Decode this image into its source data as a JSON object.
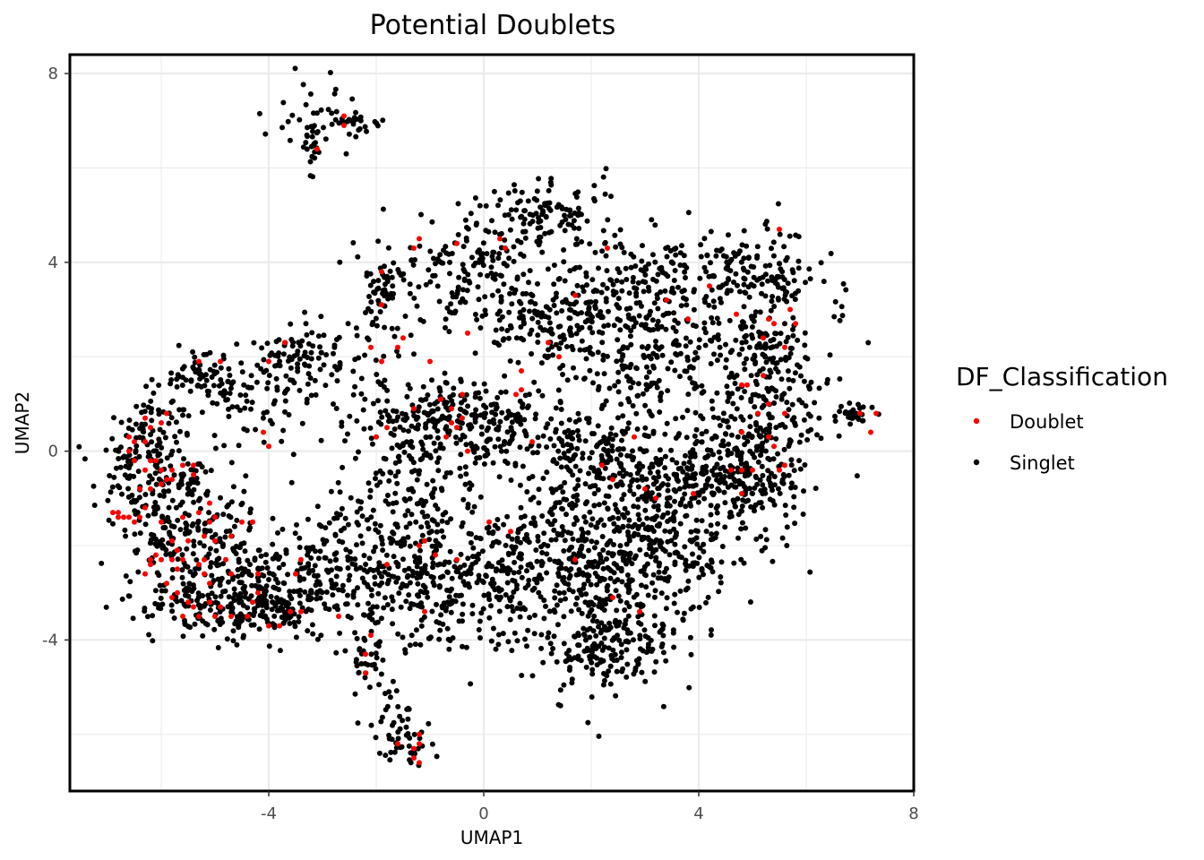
{
  "chart_data": {
    "type": "scatter",
    "title": "Potential Doublets",
    "xlabel": "UMAP1",
    "ylabel": "UMAP2",
    "xlim": [
      -7.7,
      8
    ],
    "ylim": [
      -7.2,
      8.4
    ],
    "xticks": [
      -4,
      0,
      4,
      8
    ],
    "xtick_labels": [
      "-4",
      "0",
      "4",
      "8"
    ],
    "yticks": [
      -4,
      0,
      4,
      8
    ],
    "ytick_labels": [
      "-4",
      "0",
      "4",
      "8"
    ],
    "grid": true,
    "legend": {
      "title": "DF_Classification",
      "placement": "right",
      "entries": [
        "Doublet",
        "Singlet"
      ]
    },
    "series": [
      {
        "name": "Doublet",
        "color": "#ff0000",
        "points": [
          [
            -3.1,
            6.4
          ],
          [
            -2.6,
            7.1
          ],
          [
            -2.6,
            6.9
          ],
          [
            -1.9,
            3.8
          ],
          [
            -1.2,
            4.5
          ],
          [
            -1.3,
            4.3
          ],
          [
            -1.9,
            3.1
          ],
          [
            -2.1,
            2.2
          ],
          [
            -1.5,
            2.4
          ],
          [
            -1.6,
            2.2
          ],
          [
            -1.9,
            1.9
          ],
          [
            -1.0,
            1.9
          ],
          [
            -0.5,
            4.4
          ],
          [
            0.3,
            4.5
          ],
          [
            0.4,
            4.3
          ],
          [
            1.7,
            3.3
          ],
          [
            2.3,
            4.3
          ],
          [
            3.4,
            3.2
          ],
          [
            4.2,
            3.5
          ],
          [
            3.8,
            2.8
          ],
          [
            4.7,
            2.9
          ],
          [
            5.3,
            2.8
          ],
          [
            5.7,
            3.0
          ],
          [
            5.2,
            2.4
          ],
          [
            5.4,
            2.7
          ],
          [
            5.8,
            2.7
          ],
          [
            5.5,
            4.7
          ],
          [
            5.6,
            2.2
          ],
          [
            5.2,
            1.6
          ],
          [
            4.8,
            1.4
          ],
          [
            4.9,
            1.4
          ],
          [
            5.3,
            1.0
          ],
          [
            5.6,
            0.8
          ],
          [
            5.1,
            0.8
          ],
          [
            4.8,
            0.4
          ],
          [
            5.3,
            0.3
          ],
          [
            5.4,
            0.1
          ],
          [
            5.0,
            -0.4
          ],
          [
            4.8,
            -0.4
          ],
          [
            5.5,
            -0.4
          ],
          [
            4.8,
            -0.4
          ],
          [
            5.6,
            -0.3
          ],
          [
            4.8,
            -0.9
          ],
          [
            4.6,
            -0.4
          ],
          [
            7.0,
            0.8
          ],
          [
            7.3,
            0.8
          ],
          [
            7.2,
            0.4
          ],
          [
            -0.4,
            1.2
          ],
          [
            -0.8,
            1.1
          ],
          [
            -0.6,
            0.9
          ],
          [
            -0.4,
            0.7
          ],
          [
            -0.6,
            0.6
          ],
          [
            -1.3,
            0.9
          ],
          [
            -0.5,
            0.5
          ],
          [
            -0.7,
            0.3
          ],
          [
            -0.3,
            0.0
          ],
          [
            -1.8,
            0.5
          ],
          [
            -2.0,
            0.3
          ],
          [
            0.9,
            0.2
          ],
          [
            0.7,
            1.7
          ],
          [
            0.7,
            1.3
          ],
          [
            0.6,
            1.2
          ],
          [
            1.4,
            2.0
          ],
          [
            1.2,
            2.3
          ],
          [
            -0.3,
            2.5
          ],
          [
            -4.9,
            1.9
          ],
          [
            -4.0,
            1.9
          ],
          [
            -3.7,
            2.3
          ],
          [
            -5.3,
            1.9
          ],
          [
            -4.1,
            0.4
          ],
          [
            -4.0,
            0.1
          ],
          [
            -6.8,
            -1.3
          ],
          [
            -6.9,
            -1.3
          ],
          [
            -6.8,
            -1.4
          ],
          [
            -6.7,
            -1.4
          ],
          [
            -6.5,
            -1.5
          ],
          [
            -6.6,
            -1.4
          ],
          [
            -6.4,
            -1.4
          ],
          [
            -6.3,
            -1.2
          ],
          [
            -6.0,
            -1.5
          ],
          [
            -6.2,
            0.5
          ],
          [
            -6.0,
            0.6
          ],
          [
            -6.6,
            0.0
          ],
          [
            -6.6,
            0.3
          ],
          [
            -6.5,
            0.2
          ],
          [
            -6.3,
            0.2
          ],
          [
            -6.5,
            -0.2
          ],
          [
            -6.2,
            -0.2
          ],
          [
            -6.1,
            -0.2
          ],
          [
            -5.9,
            0.8
          ],
          [
            -6.3,
            0.7
          ],
          [
            -6.3,
            -0.4
          ],
          [
            -6.0,
            -0.4
          ],
          [
            -5.8,
            -0.4
          ],
          [
            -5.8,
            -0.6
          ],
          [
            -5.6,
            -0.3
          ],
          [
            -5.4,
            -0.3
          ],
          [
            -5.4,
            -0.5
          ],
          [
            -5.9,
            -0.6
          ],
          [
            -6.0,
            -0.7
          ],
          [
            -6.2,
            -0.8
          ],
          [
            -6.4,
            -0.8
          ],
          [
            -5.6,
            -1.4
          ],
          [
            -5.5,
            -1.9
          ],
          [
            -5.2,
            -1.8
          ],
          [
            -5.1,
            -1.5
          ],
          [
            -5.0,
            -1.4
          ],
          [
            -5.3,
            -1.3
          ],
          [
            -5.1,
            -1.1
          ],
          [
            -5.0,
            -1.9
          ],
          [
            -4.7,
            -1.8
          ],
          [
            -4.5,
            -1.5
          ],
          [
            -4.3,
            -1.5
          ],
          [
            -5.8,
            -1.9
          ],
          [
            -5.7,
            -2.1
          ],
          [
            -5.8,
            -2.3
          ],
          [
            -6.0,
            -2.3
          ],
          [
            -6.2,
            -2.3
          ],
          [
            -5.3,
            -2.4
          ],
          [
            -5.6,
            -2.3
          ],
          [
            -5.2,
            -2.6
          ],
          [
            -5.7,
            -2.5
          ],
          [
            -5.2,
            -2.3
          ],
          [
            -4.7,
            -2.6
          ],
          [
            -6.3,
            -2.6
          ],
          [
            -6.2,
            -2.4
          ],
          [
            -5.9,
            -2.8
          ],
          [
            -5.1,
            -2.8
          ],
          [
            -4.8,
            -2.3
          ],
          [
            -4.2,
            -2.6
          ],
          [
            -4.2,
            -3.0
          ],
          [
            -3.4,
            -2.3
          ],
          [
            -3.5,
            -2.6
          ],
          [
            -5.7,
            -3.0
          ],
          [
            -5.8,
            -3.1
          ],
          [
            -5.5,
            -3.2
          ],
          [
            -5.4,
            -3.3
          ],
          [
            -5.1,
            -3.2
          ],
          [
            -4.9,
            -3.3
          ],
          [
            -5.6,
            -3.5
          ],
          [
            -5.3,
            -3.5
          ],
          [
            -5.0,
            -3.5
          ],
          [
            -4.7,
            -3.5
          ],
          [
            -4.4,
            -3.5
          ],
          [
            -4.3,
            -3.2
          ],
          [
            -4.0,
            -3.7
          ],
          [
            -3.8,
            -3.7
          ],
          [
            -3.6,
            -3.4
          ],
          [
            -3.4,
            -3.4
          ],
          [
            -2.7,
            -3.5
          ],
          [
            -6.1,
            -2.2
          ],
          [
            -1.8,
            -2.4
          ],
          [
            -1.2,
            -2.0
          ],
          [
            -1.1,
            -1.9
          ],
          [
            -0.9,
            -2.2
          ],
          [
            -1.1,
            -3.4
          ],
          [
            -0.5,
            -2.3
          ],
          [
            0.5,
            -1.7
          ],
          [
            0.1,
            -1.5
          ],
          [
            -2.1,
            -3.9
          ],
          [
            -2.2,
            -4.3
          ],
          [
            -2.2,
            -4.7
          ],
          [
            -1.6,
            -6.2
          ],
          [
            -1.3,
            -6.3
          ],
          [
            -1.3,
            -6.5
          ],
          [
            -1.2,
            -6.6
          ],
          [
            -1.2,
            -6.0
          ],
          [
            -1.2,
            -6.2
          ],
          [
            2.2,
            -0.3
          ],
          [
            2.4,
            -0.6
          ],
          [
            3.0,
            -0.8
          ],
          [
            3.2,
            -1.0
          ],
          [
            2.4,
            -3.1
          ],
          [
            2.9,
            -3.4
          ],
          [
            2.8,
            0.3
          ],
          [
            1.7,
            -2.3
          ],
          [
            3.9,
            -0.9
          ]
        ]
      },
      {
        "name": "Singlet",
        "color": "#000000",
        "clusters": [
          {
            "cx": -3.0,
            "cy": 7.2,
            "sx": 0.4,
            "sy": 0.45,
            "n": 30
          },
          {
            "cx": -3.2,
            "cy": 6.5,
            "sx": 0.08,
            "sy": 0.3,
            "n": 20
          },
          {
            "cx": -2.4,
            "cy": 7.0,
            "sx": 0.35,
            "sy": 0.1,
            "n": 25
          },
          {
            "cx": 1.2,
            "cy": 5.0,
            "sx": 0.7,
            "sy": 0.4,
            "n": 110
          },
          {
            "cx": -0.4,
            "cy": 4.1,
            "sx": 0.7,
            "sy": 0.5,
            "n": 110
          },
          {
            "cx": -1.9,
            "cy": 3.3,
            "sx": 0.3,
            "sy": 0.5,
            "n": 60
          },
          {
            "cx": 0.5,
            "cy": 3.0,
            "sx": 1.1,
            "sy": 0.5,
            "n": 120
          },
          {
            "cx": 1.5,
            "cy": 2.6,
            "sx": 0.6,
            "sy": 0.4,
            "n": 80
          },
          {
            "cx": 3.0,
            "cy": 3.5,
            "sx": 0.9,
            "sy": 0.5,
            "n": 140
          },
          {
            "cx": 3.0,
            "cy": 1.9,
            "sx": 0.8,
            "sy": 0.8,
            "n": 220
          },
          {
            "cx": 4.8,
            "cy": 3.8,
            "sx": 0.8,
            "sy": 0.5,
            "n": 140
          },
          {
            "cx": 5.3,
            "cy": 2.0,
            "sx": 0.5,
            "sy": 0.9,
            "n": 180
          },
          {
            "cx": 5.0,
            "cy": 0.0,
            "sx": 0.6,
            "sy": 0.9,
            "n": 220
          },
          {
            "cx": 4.3,
            "cy": -0.7,
            "sx": 0.7,
            "sy": 0.4,
            "n": 120
          },
          {
            "cx": 3.2,
            "cy": -1.2,
            "sx": 0.9,
            "sy": 0.7,
            "n": 200
          },
          {
            "cx": 2.0,
            "cy": -0.3,
            "sx": 0.9,
            "sy": 0.6,
            "n": 160
          },
          {
            "cx": 2.3,
            "cy": -2.6,
            "sx": 0.9,
            "sy": 1.0,
            "n": 280
          },
          {
            "cx": 2.2,
            "cy": -4.2,
            "sx": 0.7,
            "sy": 0.45,
            "n": 160
          },
          {
            "cx": 0.8,
            "cy": -2.4,
            "sx": 1.0,
            "sy": 0.8,
            "n": 240
          },
          {
            "cx": -0.8,
            "cy": -2.9,
            "sx": 0.9,
            "sy": 0.6,
            "n": 200
          },
          {
            "cx": -2.5,
            "cy": -2.5,
            "sx": 0.9,
            "sy": 0.6,
            "n": 200
          },
          {
            "cx": -1.5,
            "cy": -0.7,
            "sx": 0.6,
            "sy": 0.9,
            "n": 150
          },
          {
            "cx": -0.8,
            "cy": 0.8,
            "sx": 0.8,
            "sy": 0.4,
            "n": 160
          },
          {
            "cx": 0.5,
            "cy": 0.4,
            "sx": 0.9,
            "sy": 0.5,
            "n": 140
          },
          {
            "cx": -3.3,
            "cy": 2.0,
            "sx": 0.6,
            "sy": 0.35,
            "n": 90
          },
          {
            "cx": -4.6,
            "cy": 1.3,
            "sx": 0.8,
            "sy": 0.45,
            "n": 90
          },
          {
            "cx": -5.3,
            "cy": 1.7,
            "sx": 0.3,
            "sy": 0.3,
            "n": 40
          },
          {
            "cx": -6.3,
            "cy": 0.0,
            "sx": 0.4,
            "sy": 0.6,
            "n": 140
          },
          {
            "cx": -5.6,
            "cy": -1.5,
            "sx": 0.6,
            "sy": 0.6,
            "n": 180
          },
          {
            "cx": -4.6,
            "cy": -2.6,
            "sx": 0.8,
            "sy": 0.6,
            "n": 200
          },
          {
            "cx": -5.0,
            "cy": -3.4,
            "sx": 0.7,
            "sy": 0.25,
            "n": 110
          },
          {
            "cx": -3.7,
            "cy": -3.3,
            "sx": 0.4,
            "sy": 0.3,
            "n": 60
          },
          {
            "cx": 6.9,
            "cy": 0.8,
            "sx": 0.2,
            "sy": 0.1,
            "n": 30
          },
          {
            "cx": -2.2,
            "cy": -4.3,
            "sx": 0.15,
            "sy": 0.35,
            "n": 30
          },
          {
            "cx": -1.4,
            "cy": -6.1,
            "sx": 0.2,
            "sy": 0.35,
            "n": 45
          },
          {
            "cx": -1.8,
            "cy": -5.3,
            "sx": 0.2,
            "sy": 0.3,
            "n": 12
          },
          {
            "cx": -3.5,
            "cy": 0.5,
            "sx": 1.0,
            "sy": 0.8,
            "n": 30
          },
          {
            "cx": 3.8,
            "cy": -2.3,
            "sx": 0.5,
            "sy": 0.5,
            "n": 60
          }
        ]
      }
    ]
  }
}
